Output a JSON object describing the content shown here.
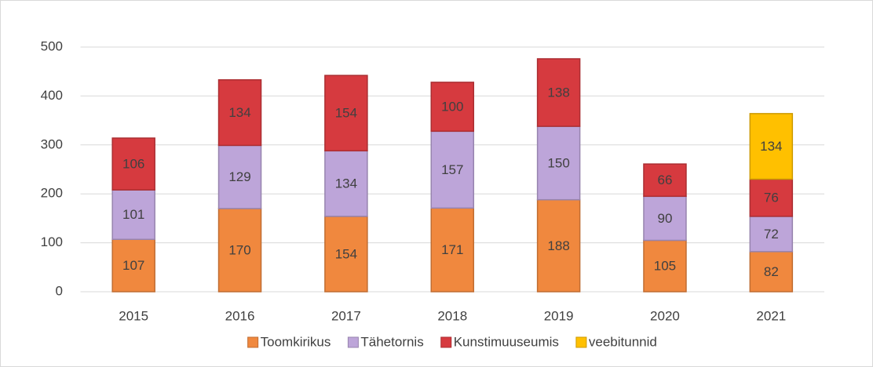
{
  "chart_data": {
    "type": "stacked_bar",
    "categories": [
      "2015",
      "2016",
      "2017",
      "2018",
      "2019",
      "2020",
      "2021"
    ],
    "series": [
      {
        "name": "Toomkirikus",
        "color": "#f0883e",
        "values": [
          107,
          170,
          154,
          171,
          188,
          105,
          82
        ]
      },
      {
        "name": "Tähetornis",
        "color": "#bda5d9",
        "values": [
          101,
          129,
          134,
          157,
          150,
          90,
          72
        ]
      },
      {
        "name": "Kunstimuuseumis",
        "color": "#d63a3f",
        "values": [
          106,
          134,
          154,
          100,
          138,
          66,
          76
        ]
      },
      {
        "name": "veebitunnid",
        "color": "#ffc000",
        "values": [
          null,
          null,
          null,
          null,
          null,
          null,
          134
        ]
      }
    ],
    "ylim": [
      0,
      500
    ],
    "yticks": [
      0,
      100,
      200,
      300,
      400,
      500
    ],
    "grid": true,
    "legend": "bottom"
  }
}
